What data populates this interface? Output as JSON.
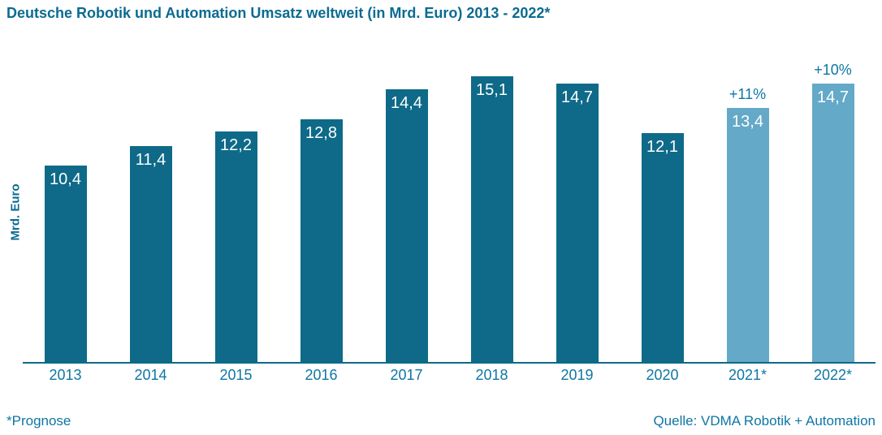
{
  "title": "Deutsche Robotik und Automation Umsatz weltweit (in Mrd. Euro) 2013 - 2022*",
  "footer": {
    "note": "*Prognose",
    "source": "Quelle: VDMA Robotik + Automation"
  },
  "colors": {
    "bar": "#0e6a88",
    "bar_forecast": "#64a9c7",
    "title_text": "#0a6b91",
    "label_text": "#0e76a4",
    "axis": "#0e6a88",
    "value_text": "#ffffff"
  },
  "chart_data": {
    "type": "bar",
    "title": "Deutsche Robotik und Automation Umsatz weltweit (in Mrd. Euro) 2013 - 2022*",
    "categories": [
      "2013",
      "2014",
      "2015",
      "2016",
      "2017",
      "2018",
      "2019",
      "2020",
      "2021*",
      "2022*"
    ],
    "values": [
      10.4,
      11.4,
      12.2,
      12.8,
      14.4,
      15.1,
      14.7,
      12.1,
      13.4,
      14.7
    ],
    "value_labels": [
      "10,4",
      "11,4",
      "12,2",
      "12,8",
      "14,4",
      "15,1",
      "14,7",
      "12,1",
      "13,4",
      "14,7"
    ],
    "forecast": [
      false,
      false,
      false,
      false,
      false,
      false,
      false,
      false,
      true,
      true
    ],
    "growth_labels": [
      "",
      "",
      "",
      "",
      "",
      "",
      "",
      "",
      "+11%",
      "+10%"
    ],
    "xlabel": "",
    "ylabel": "Mrd. Euro",
    "ylim": [
      0,
      16
    ],
    "unit": "Mrd. Euro",
    "grid": false,
    "legend": "none",
    "note": "*Prognose",
    "source": "Quelle: VDMA Robotik + Automation"
  }
}
